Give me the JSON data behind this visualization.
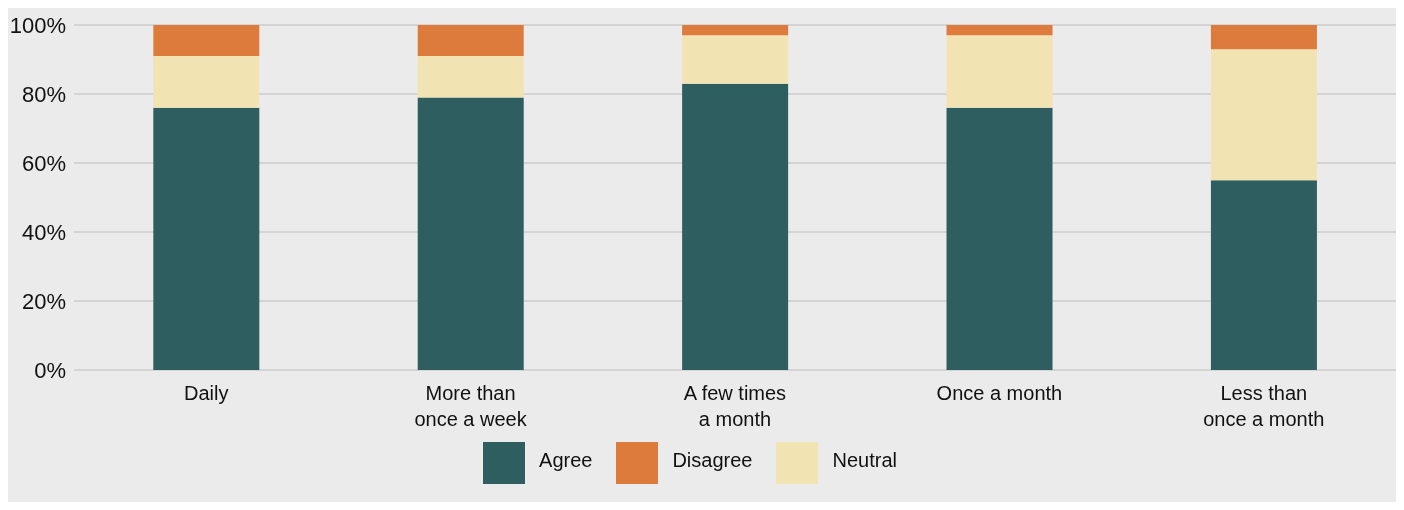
{
  "chart_data": {
    "type": "bar",
    "stacked": true,
    "categories": [
      "Daily",
      "More than once a week",
      "A few times a month",
      "Once a month",
      "Less than once a month"
    ],
    "series": [
      {
        "name": "Agree",
        "color": "#2e5e5f",
        "values": [
          76,
          79,
          83,
          76,
          55
        ]
      },
      {
        "name": "Neutral",
        "color": "#f2e3b3",
        "values": [
          15,
          12,
          14,
          21,
          38
        ]
      },
      {
        "name": "Disagree",
        "color": "#dc7b3c",
        "values": [
          9,
          9,
          3,
          3,
          7
        ]
      }
    ],
    "ylim": [
      0,
      100
    ],
    "yticks": [
      {
        "value": 0,
        "label": "0%"
      },
      {
        "value": 20,
        "label": "20%"
      },
      {
        "value": 40,
        "label": "40%"
      },
      {
        "value": 60,
        "label": "60%"
      },
      {
        "value": 80,
        "label": "80%"
      },
      {
        "value": 100,
        "label": "100%"
      }
    ],
    "grid": "y",
    "legend": "bottom"
  }
}
